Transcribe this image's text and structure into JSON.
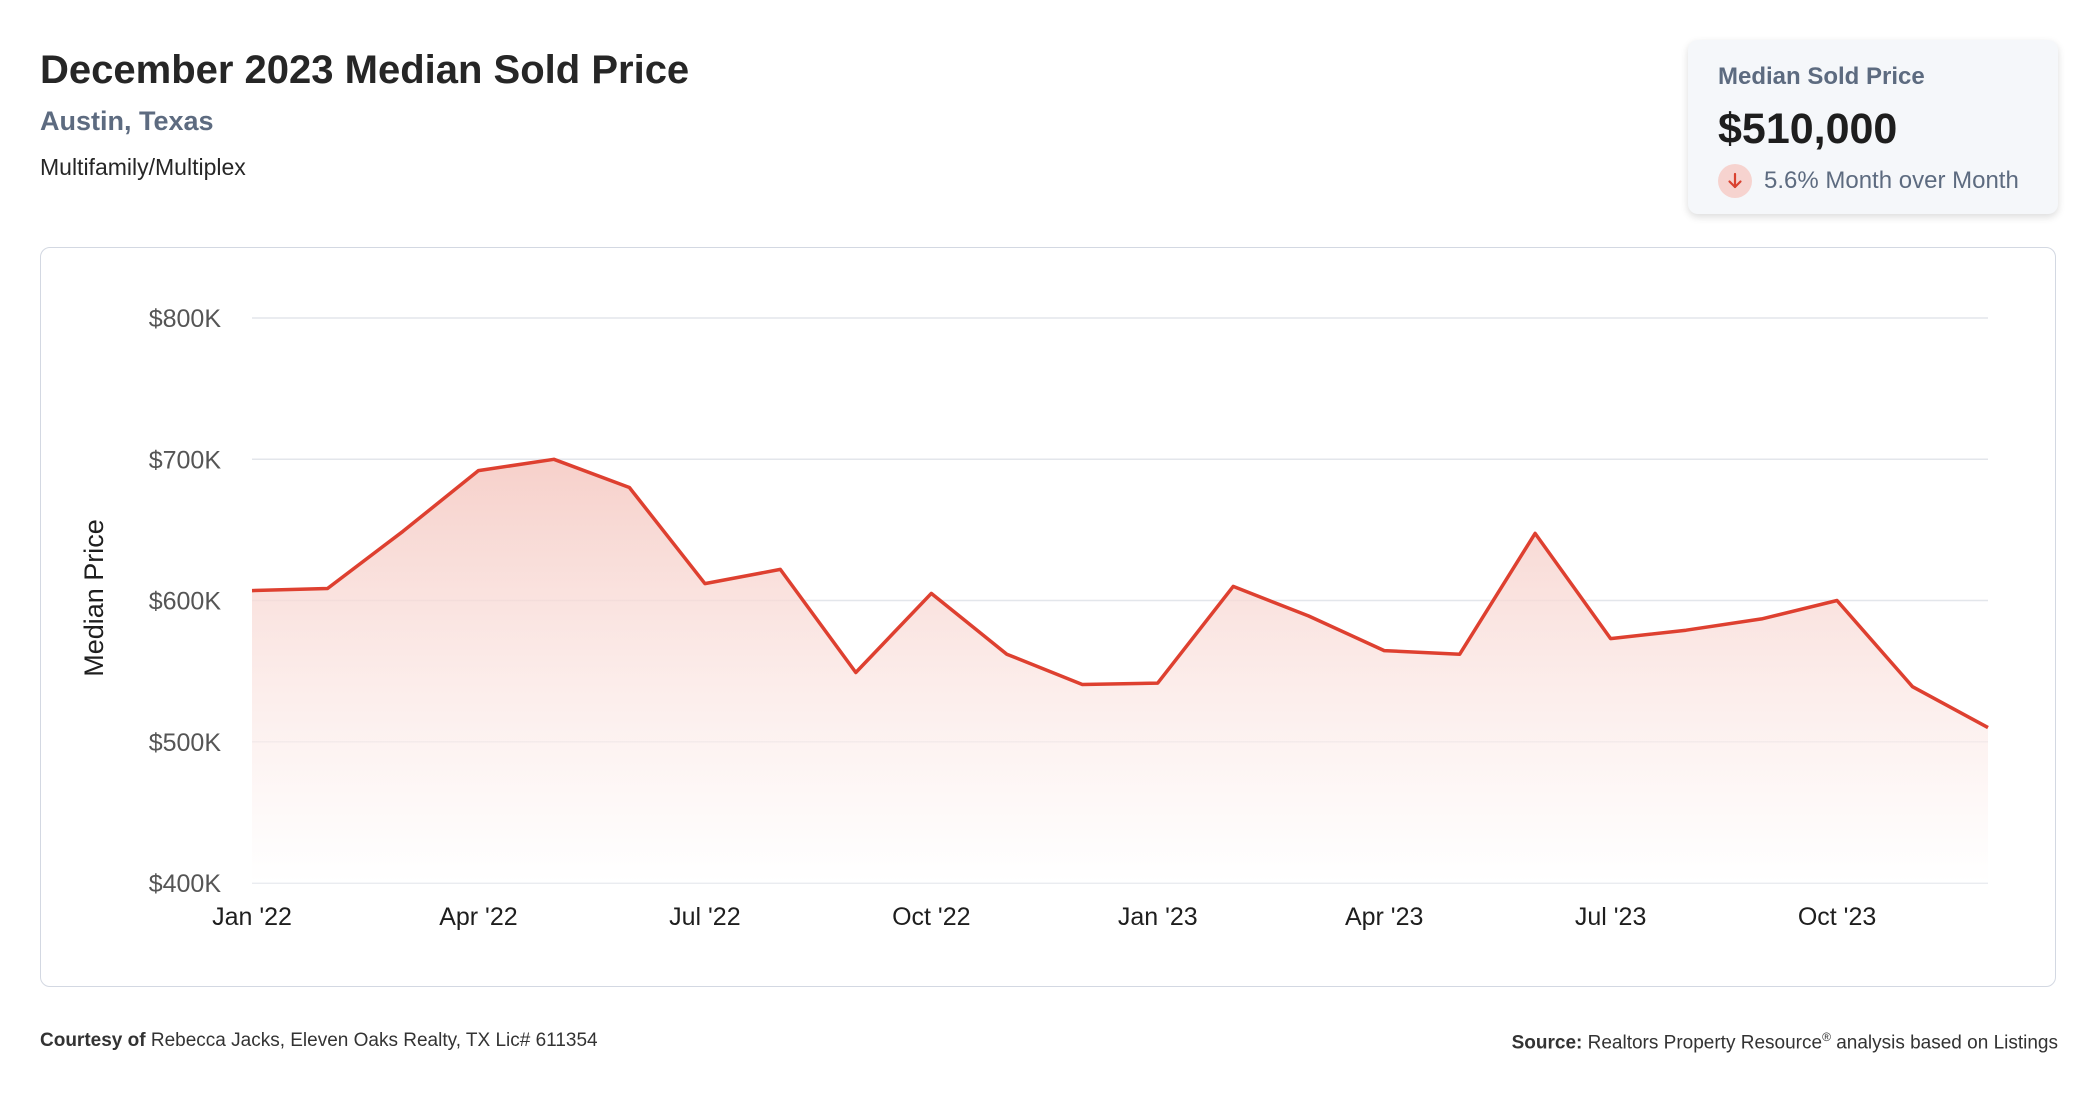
{
  "header": {
    "title": "December 2023 Median Sold Price",
    "location": "Austin, Texas",
    "property_type": "Multifamily/Multiplex"
  },
  "kpi": {
    "label": "Median Sold Price",
    "value": "$510,000",
    "change_text": "5.6% Month over Month",
    "direction_icon": "arrow-down-icon"
  },
  "colors": {
    "line": "#de4030",
    "area_top": "#f5c8c1",
    "grid": "#e3e6eb",
    "tick_text": "#555555"
  },
  "footer": {
    "courtesy_label": "Courtesy of",
    "courtesy_text": "Rebecca Jacks, Eleven Oaks Realty, TX Lic# 611354",
    "source_label": "Source:",
    "source_text_1": "Realtors Property Resource",
    "source_sup": "®",
    "source_text_2": "analysis based on Listings"
  },
  "chart_data": {
    "type": "area",
    "title": "",
    "xlabel": "",
    "ylabel": "Median Price",
    "ylim": [
      400000,
      800000
    ],
    "yticks": [
      400000,
      500000,
      600000,
      700000,
      800000
    ],
    "ytick_labels": [
      "$400K",
      "$500K",
      "$600K",
      "$700K",
      "$800K"
    ],
    "xtick_labels": [
      "Jan '22",
      "Apr '22",
      "Jul '22",
      "Oct '22",
      "Jan '23",
      "Apr '23",
      "Jul '23",
      "Oct '23"
    ],
    "xtick_indices": [
      0,
      3,
      6,
      9,
      12,
      15,
      18,
      21
    ],
    "grid": true,
    "legend": "none",
    "x": [
      "2022-01",
      "2022-02",
      "2022-03",
      "2022-04",
      "2022-05",
      "2022-06",
      "2022-07",
      "2022-08",
      "2022-09",
      "2022-10",
      "2022-11",
      "2022-12",
      "2023-01",
      "2023-02",
      "2023-03",
      "2023-04",
      "2023-05",
      "2023-06",
      "2023-07",
      "2023-08",
      "2023-09",
      "2023-10",
      "2023-11",
      "2023-12"
    ],
    "series": [
      {
        "values": [
          607000,
          608500,
          649000,
          692000,
          700000,
          680000,
          612000,
          622000,
          549000,
          605000,
          562000,
          540500,
          541500,
          610000,
          589000,
          564500,
          562000,
          647500,
          573000,
          579000,
          587000,
          600000,
          539000,
          510000
        ]
      }
    ]
  }
}
